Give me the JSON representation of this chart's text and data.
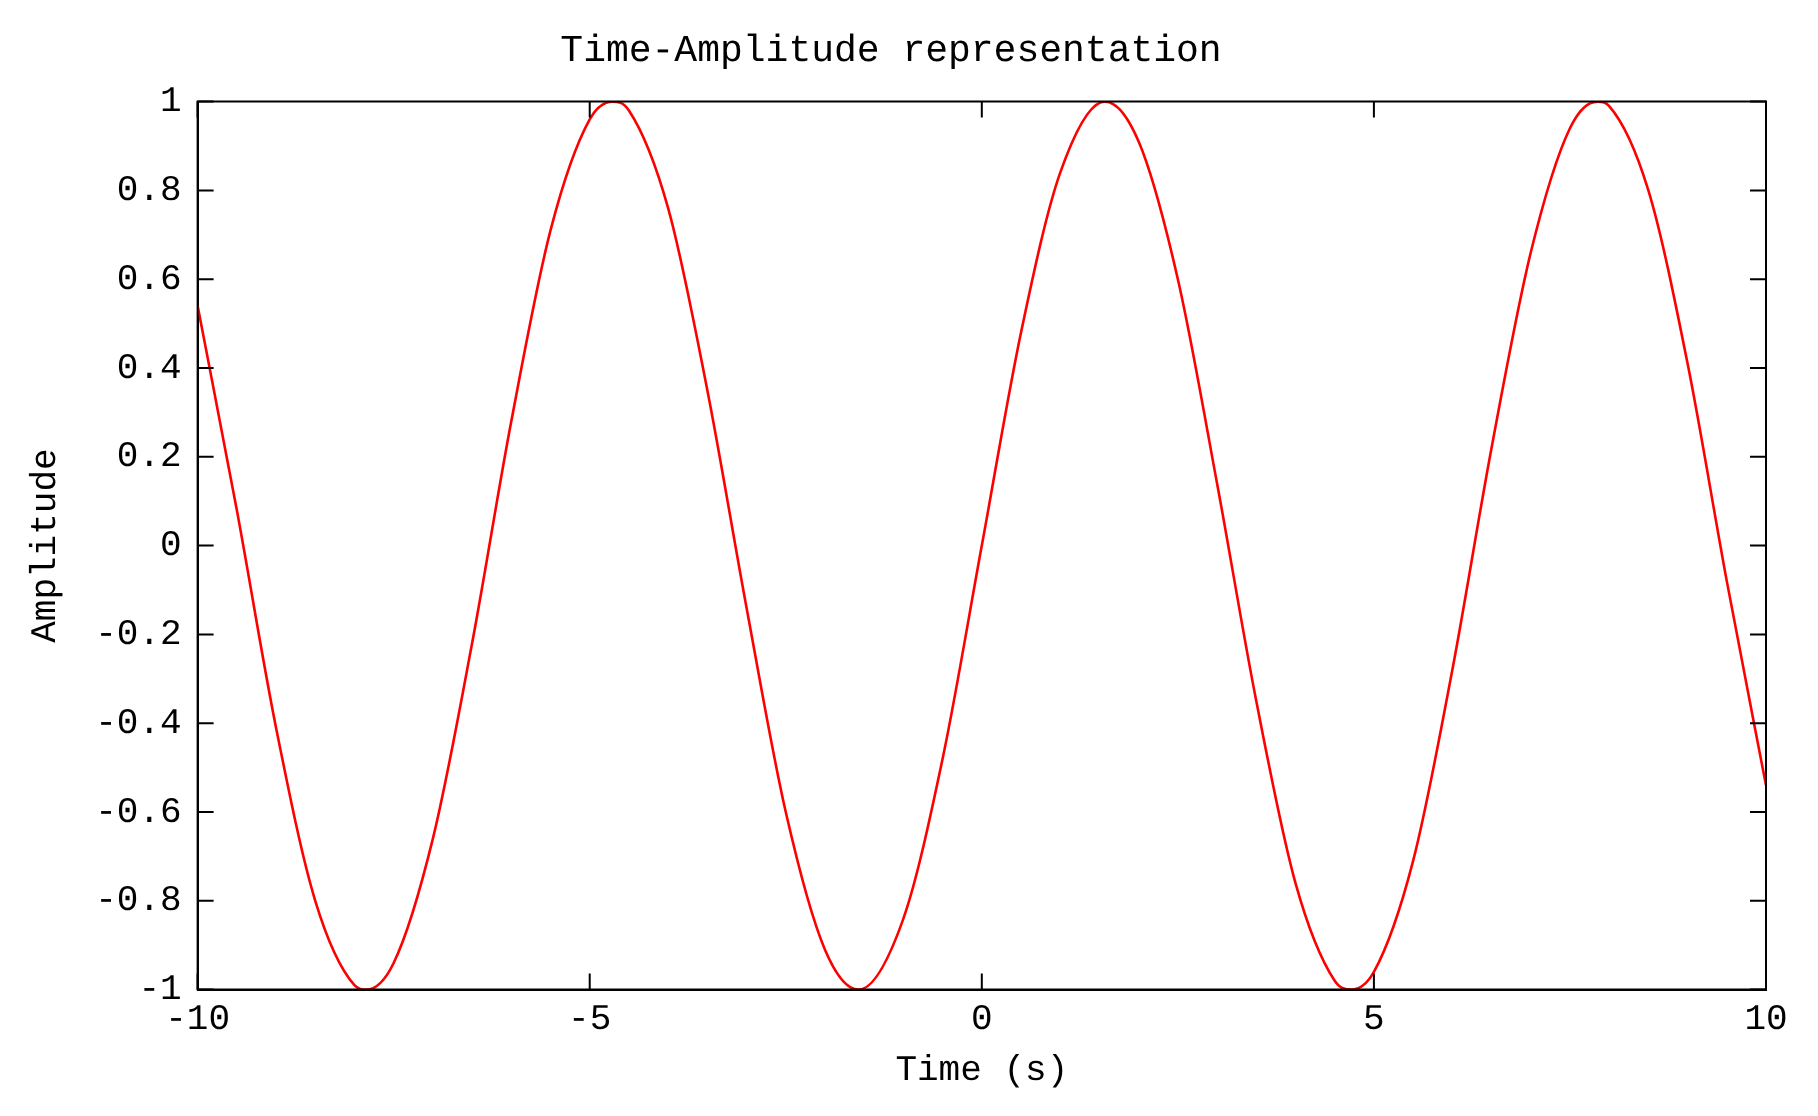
{
  "chart_data": {
    "type": "line",
    "title": "Time-Amplitude representation",
    "xlabel": "Time (s)",
    "ylabel": "Amplitude",
    "x": [
      -10,
      -9.5,
      -9,
      -8.5,
      -8,
      -7.85,
      -7.5,
      -7,
      -6.5,
      -6,
      -5.5,
      -5,
      -4.71,
      -4.5,
      -4,
      -3.5,
      -3,
      -2.5,
      -2,
      -1.57,
      -1,
      -0.5,
      0,
      0.5,
      1,
      1.57,
      2,
      2.5,
      3,
      3.5,
      4,
      4.5,
      4.71,
      5,
      5.5,
      6,
      6.5,
      7,
      7.5,
      7.85,
      8,
      8.5,
      9,
      9.5,
      10
    ],
    "series": [
      {
        "color": "#ff0000",
        "values": [
          0.54,
          0.08,
          -0.41,
          -0.8,
          -0.99,
          -1,
          -0.94,
          -0.66,
          -0.22,
          0.28,
          0.71,
          0.96,
          1,
          0.98,
          0.76,
          0.35,
          -0.14,
          -0.6,
          -0.91,
          -1,
          -0.84,
          -0.48,
          0,
          0.48,
          0.84,
          1,
          0.91,
          0.6,
          0.14,
          -0.35,
          -0.76,
          -0.98,
          -1,
          -0.96,
          -0.71,
          -0.28,
          0.22,
          0.66,
          0.94,
          1,
          0.99,
          0.8,
          0.41,
          -0.08,
          -0.54
        ]
      }
    ],
    "xlim": [
      -10,
      10
    ],
    "xticks": [
      -10,
      -5,
      0,
      5,
      10
    ],
    "ylim": [
      -1,
      1
    ],
    "yticks": [
      -1,
      -0.8,
      -0.6,
      -0.4,
      -0.2,
      0,
      0.2,
      0.4,
      0.6,
      0.8,
      1
    ],
    "grid": false,
    "legend": false,
    "marker": "none",
    "line_style": "solid"
  }
}
